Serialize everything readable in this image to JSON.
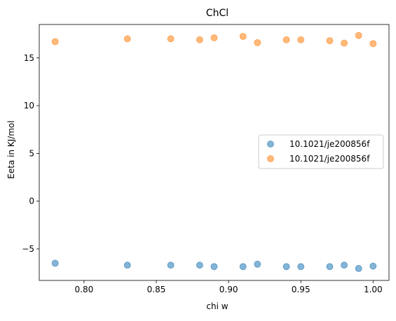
{
  "chart_data": {
    "type": "scatter",
    "title": "ChCl",
    "xlabel": "chi w",
    "ylabel": "Eeta in KJ/mol",
    "xlim": [
      0.769,
      1.011
    ],
    "ylim": [
      -8.3,
      18.5
    ],
    "xticks": [
      0.8,
      0.85,
      0.9,
      0.95,
      1.0
    ],
    "xtick_labels": [
      "0.80",
      "0.85",
      "0.90",
      "0.95",
      "1.00"
    ],
    "yticks": [
      -5,
      0,
      5,
      10,
      15
    ],
    "ytick_labels": [
      "−5",
      "0",
      "5",
      "10",
      "15"
    ],
    "grid": false,
    "legend_position": "center-right",
    "series": [
      {
        "name": "10.1021/je200856f",
        "color": "#1f77b4",
        "points": [
          [
            0.78,
            -6.5
          ],
          [
            0.83,
            -6.7
          ],
          [
            0.86,
            -6.7
          ],
          [
            0.88,
            -6.7
          ],
          [
            0.89,
            -6.85
          ],
          [
            0.91,
            -6.85
          ],
          [
            0.92,
            -6.6
          ],
          [
            0.94,
            -6.85
          ],
          [
            0.95,
            -6.85
          ],
          [
            0.97,
            -6.85
          ],
          [
            0.98,
            -6.7
          ],
          [
            0.99,
            -7.05
          ],
          [
            1.0,
            -6.8
          ]
        ]
      },
      {
        "name": "10.1021/je200856f",
        "color": "#ff7f0e",
        "points": [
          [
            0.78,
            16.7
          ],
          [
            0.83,
            17.0
          ],
          [
            0.86,
            17.0
          ],
          [
            0.88,
            16.9
          ],
          [
            0.89,
            17.1
          ],
          [
            0.91,
            17.25
          ],
          [
            0.92,
            16.6
          ],
          [
            0.94,
            16.9
          ],
          [
            0.95,
            16.9
          ],
          [
            0.97,
            16.8
          ],
          [
            0.98,
            16.55
          ],
          [
            0.99,
            17.35
          ],
          [
            1.0,
            16.5
          ]
        ]
      }
    ]
  }
}
